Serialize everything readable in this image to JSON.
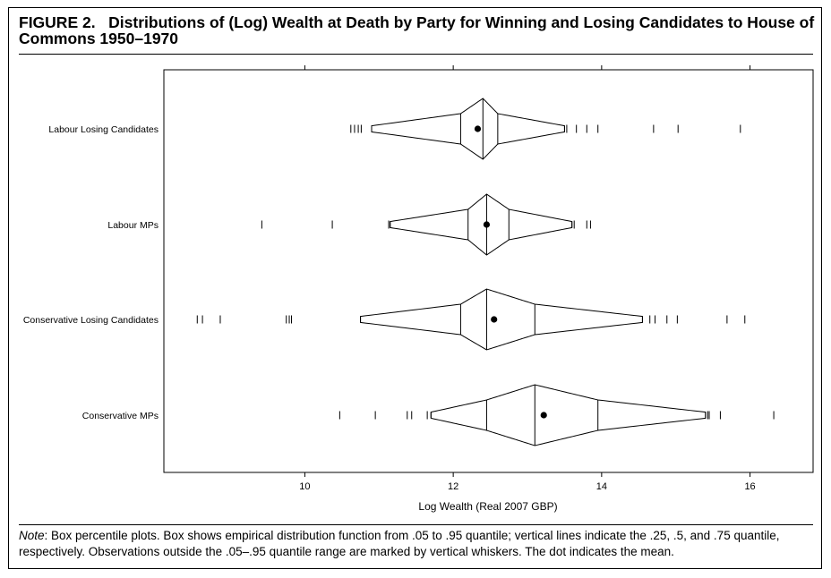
{
  "figure": {
    "label": "FIGURE 2.",
    "title": "Distributions of (Log) Wealth at Death by Party for Winning and Losing Candidates to House of Commons 1950–1970"
  },
  "note": {
    "label": "Note",
    "text": ": Box percentile plots. Box shows empirical distribution function from .05 to .95 quantile; vertical lines indicate the .25, .5, and .75 quantile, respectively. Observations outside the .05–.95 quantile range are marked by vertical whiskers. The dot indicates the mean."
  },
  "chart_data": {
    "type": "box-percentile",
    "xlabel": "Log Wealth (Real 2007 GBP)",
    "xlim": [
      8.1,
      16.85
    ],
    "xticks": [
      10,
      12,
      14,
      16
    ],
    "categories": [
      "Labour Losing Candidates",
      "Labour MPs",
      "Conservative Losing Candidates",
      "Conservative MPs"
    ],
    "series": [
      {
        "name": "Labour Losing Candidates",
        "q05": 10.9,
        "q25": 12.1,
        "q50": 12.4,
        "q75": 12.6,
        "q95": 13.5,
        "mean": 12.33,
        "outliers": [
          10.62,
          10.67,
          10.72,
          10.76,
          13.53,
          13.66,
          13.8,
          13.95,
          14.7,
          15.03,
          15.87
        ]
      },
      {
        "name": "Labour MPs",
        "q05": 11.15,
        "q25": 12.2,
        "q50": 12.45,
        "q75": 12.75,
        "q95": 13.6,
        "mean": 12.45,
        "outliers": [
          9.42,
          10.37,
          11.13,
          13.63,
          13.8,
          13.85
        ]
      },
      {
        "name": "Conservative Losing Candidates",
        "q05": 10.75,
        "q25": 12.1,
        "q50": 12.45,
        "q75": 13.1,
        "q95": 14.55,
        "mean": 12.55,
        "outliers": [
          8.55,
          8.62,
          8.86,
          9.75,
          9.79,
          9.82,
          14.65,
          14.72,
          14.88,
          15.02,
          15.69,
          15.93
        ]
      },
      {
        "name": "Conservative MPs",
        "q05": 11.7,
        "q25": 12.45,
        "q50": 13.1,
        "q75": 13.95,
        "q95": 15.4,
        "mean": 13.22,
        "outliers": [
          10.47,
          10.95,
          11.38,
          11.44,
          11.65,
          15.43,
          15.45,
          15.6,
          16.32
        ]
      }
    ]
  }
}
